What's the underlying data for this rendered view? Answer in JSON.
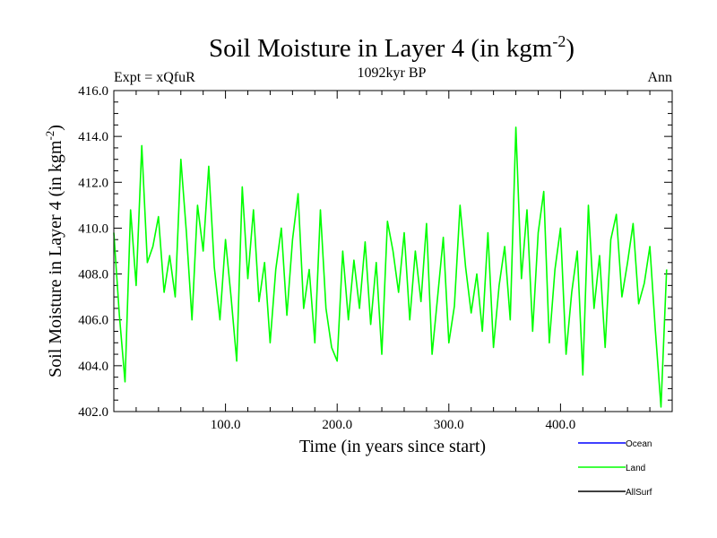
{
  "chart_data": {
    "type": "line",
    "title": "Soil Moisture in Layer 4 (in kgm",
    "title_sup": "-2",
    "title_close": ")",
    "subtitle": "1092kyr BP",
    "left_label": "Expt = xQfuR",
    "right_label": "Ann",
    "xlabel": "Time (in years since start)",
    "ylabel": "Soil Moisture in Layer 4 (in kgm",
    "ylabel_sup": "-2",
    "ylabel_close": ")",
    "xlim": [
      0,
      500
    ],
    "ylim": [
      402,
      416
    ],
    "x_ticks": [
      100,
      200,
      300,
      400
    ],
    "x_tick_labels": [
      "100.0",
      "200.0",
      "300.0",
      "400.0"
    ],
    "y_ticks": [
      402,
      404,
      406,
      408,
      410,
      412,
      414,
      416
    ],
    "y_tick_labels": [
      "402.0",
      "404.0",
      "406.0",
      "408.0",
      "410.0",
      "412.0",
      "414.0",
      "416.0"
    ],
    "series": [
      {
        "name": "Land",
        "color": "#00ff00",
        "x": [
          0,
          5,
          10,
          15,
          20,
          25,
          30,
          35,
          40,
          45,
          50,
          55,
          60,
          65,
          70,
          75,
          80,
          85,
          90,
          95,
          100,
          105,
          110,
          115,
          120,
          125,
          130,
          135,
          140,
          145,
          150,
          155,
          160,
          165,
          170,
          175,
          180,
          185,
          190,
          195,
          200,
          205,
          210,
          215,
          220,
          225,
          230,
          235,
          240,
          245,
          250,
          255,
          260,
          265,
          270,
          275,
          280,
          285,
          290,
          295,
          300,
          305,
          310,
          315,
          320,
          325,
          330,
          335,
          340,
          345,
          350,
          355,
          360,
          365,
          370,
          375,
          380,
          385,
          390,
          395,
          400,
          405,
          410,
          415,
          420,
          425,
          430,
          435,
          440,
          445,
          450,
          455,
          460,
          465,
          470,
          475,
          480,
          485,
          490,
          495
        ],
        "values": [
          409.8,
          406.2,
          403.3,
          410.8,
          407.5,
          413.6,
          408.5,
          409.2,
          410.5,
          407.2,
          408.8,
          407.0,
          413.0,
          409.8,
          406.0,
          411.0,
          409.0,
          412.7,
          408.3,
          406.0,
          409.5,
          407.0,
          404.2,
          411.8,
          407.8,
          410.8,
          406.8,
          408.5,
          405.0,
          408.2,
          410.0,
          406.2,
          409.5,
          411.5,
          406.5,
          408.2,
          405.0,
          410.8,
          406.5,
          404.8,
          404.2,
          409.0,
          406.0,
          408.6,
          406.5,
          409.4,
          405.8,
          408.5,
          404.5,
          410.3,
          409.0,
          407.2,
          409.8,
          406.0,
          409.0,
          406.8,
          410.2,
          404.5,
          407.0,
          409.6,
          405.0,
          406.6,
          411.0,
          408.3,
          406.3,
          408.0,
          405.5,
          409.8,
          404.8,
          407.5,
          409.2,
          406.0,
          414.4,
          407.8,
          410.8,
          405.5,
          409.8,
          411.6,
          405.0,
          408.2,
          410.0,
          404.5,
          407.2,
          409.0,
          403.6,
          411.0,
          406.5,
          408.8,
          404.8,
          409.5,
          410.6,
          407.0,
          408.5,
          410.2,
          406.7,
          407.6,
          409.2,
          405.5,
          402.2,
          408.2
        ]
      }
    ],
    "legend": [
      {
        "name": "Ocean",
        "color": "#0000ff"
      },
      {
        "name": "Land",
        "color": "#00ff00"
      },
      {
        "name": "AllSurf",
        "color": "#000000"
      }
    ],
    "legend_position": "bottom-right"
  }
}
